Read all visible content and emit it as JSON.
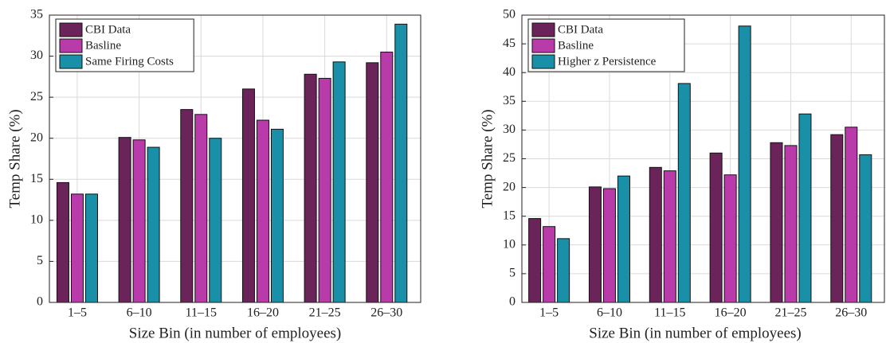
{
  "chart_data": [
    {
      "type": "bar",
      "xlabel": "Size Bin (in number of employees)",
      "ylabel": "Temp Share (%)",
      "categories": [
        "1–5",
        "6–10",
        "11–15",
        "16–20",
        "21–25",
        "26–30"
      ],
      "series": [
        {
          "name": "CBI Data",
          "color": "#6b2459",
          "values": [
            14.6,
            20.1,
            23.5,
            26.0,
            27.8,
            29.2
          ]
        },
        {
          "name": "Basline",
          "color": "#b93ba9",
          "values": [
            13.2,
            19.8,
            22.9,
            22.2,
            27.3,
            30.5
          ]
        },
        {
          "name": "Same Firing Costs",
          "color": "#1a8fa8",
          "values": [
            13.2,
            18.9,
            20.0,
            21.1,
            29.3,
            33.9
          ]
        }
      ],
      "ylim": [
        0,
        35
      ],
      "yticks": [
        0,
        5,
        10,
        15,
        20,
        25,
        30,
        35
      ],
      "grid": true,
      "legend": "upper left"
    },
    {
      "type": "bar",
      "xlabel": "Size Bin (in number of employees)",
      "ylabel": "Temp Share (%)",
      "categories": [
        "1–5",
        "6–10",
        "11–15",
        "16–20",
        "21–25",
        "26–30"
      ],
      "series": [
        {
          "name": "CBI Data",
          "color": "#6b2459",
          "values": [
            14.6,
            20.1,
            23.5,
            26.0,
            27.8,
            29.2
          ]
        },
        {
          "name": "Basline",
          "color": "#b93ba9",
          "values": [
            13.2,
            19.8,
            22.9,
            22.2,
            27.3,
            30.5
          ]
        },
        {
          "name": "Higher z Persistence",
          "color": "#1a8fa8",
          "values": [
            11.1,
            22.0,
            38.1,
            48.1,
            32.8,
            25.7
          ]
        }
      ],
      "ylim": [
        0,
        50
      ],
      "yticks": [
        0,
        5,
        10,
        15,
        20,
        25,
        30,
        35,
        40,
        45,
        50
      ],
      "grid": true,
      "legend": "upper left"
    }
  ]
}
